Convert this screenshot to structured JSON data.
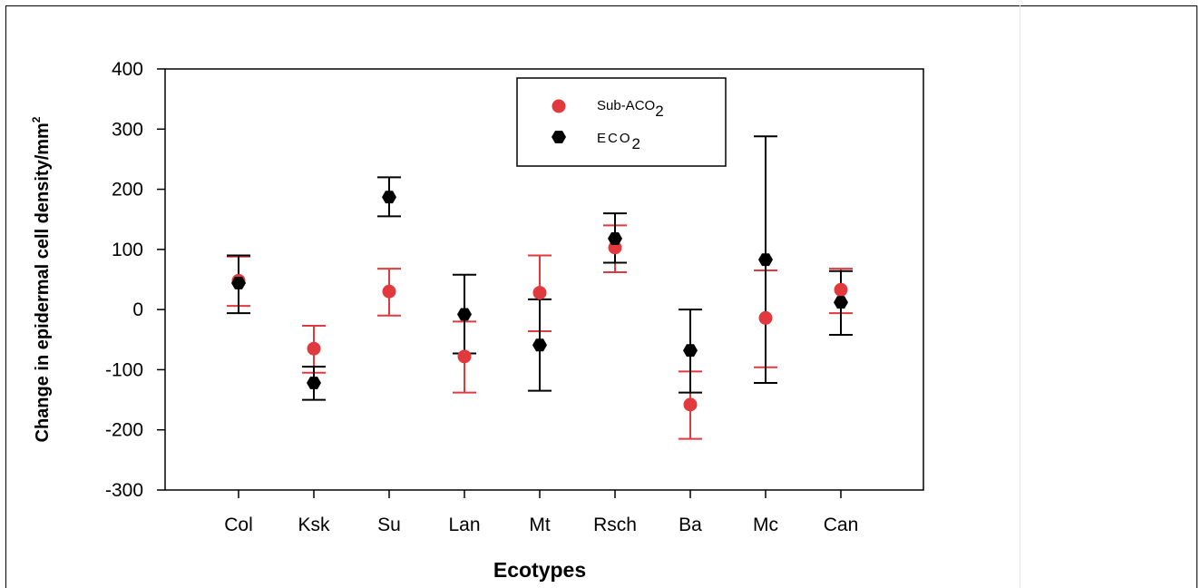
{
  "chart_data": {
    "type": "scatter",
    "xlabel": "Ecotypes",
    "ylabel": "Change in epidermal cell density/mm",
    "ylabel_sup": "2",
    "categories": [
      "Col",
      "Ksk",
      "Su",
      "Lan",
      "Mt",
      "Rsch",
      "Ba",
      "Mc",
      "Can"
    ],
    "ylim": [
      -300,
      400
    ],
    "yticks": [
      -300,
      -200,
      -100,
      0,
      100,
      200,
      300,
      400
    ],
    "grid": false,
    "legend_position": "top-right",
    "series": [
      {
        "name": "Sub-ACO2",
        "name_main": "Sub-ACO",
        "name_sub": "2",
        "color": "#e03a3e",
        "marker": "circle",
        "values": [
          48,
          -65,
          30,
          -78,
          28,
          103,
          -158,
          -14,
          33
        ],
        "error_upper": [
          88,
          -27,
          68,
          -20,
          90,
          140,
          -103,
          65,
          68
        ],
        "error_lower": [
          6,
          -105,
          -10,
          -138,
          -36,
          62,
          -215,
          -96,
          -6
        ]
      },
      {
        "name": "ECO2",
        "name_main": "ECO",
        "name_sub": "2",
        "color": "#000000",
        "marker": "hexagon",
        "values": [
          44,
          -122,
          187,
          -8,
          -59,
          118,
          -68,
          83,
          12
        ],
        "error_upper": [
          90,
          -95,
          220,
          58,
          17,
          160,
          0,
          288,
          64
        ],
        "error_lower": [
          -6,
          -150,
          155,
          -73,
          -135,
          78,
          -138,
          -122,
          -42
        ]
      }
    ]
  }
}
